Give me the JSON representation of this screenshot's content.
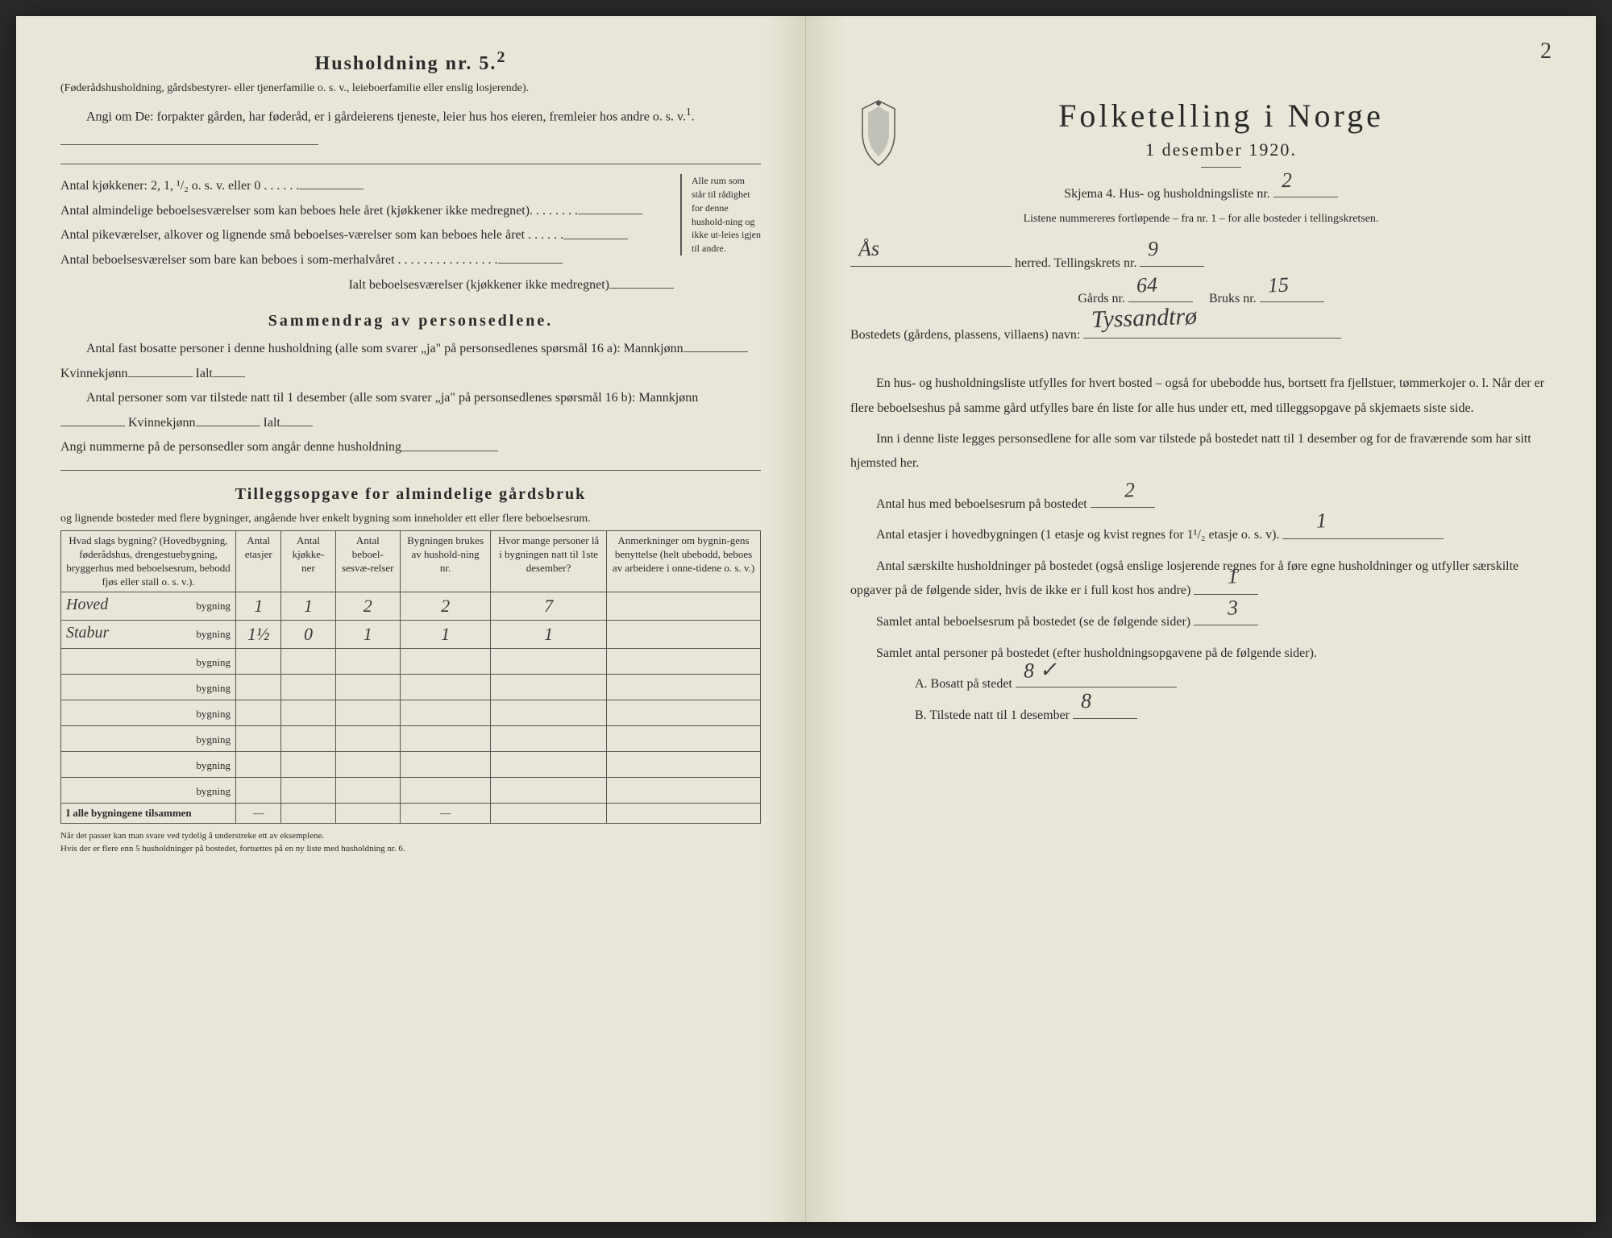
{
  "left": {
    "title": "Husholdning nr. 5.",
    "title_sup": "2",
    "intro_paren": "(Føderådshusholdning, gårdsbestyrer- eller tjenerfamilie o. s. v., leieboerfamilie eller enslig losjerende).",
    "angi_line": "Angi om De: forpakter gården, har føderåd, er i gårdeierens tjeneste, leier hus hos eieren, fremleier hos andre o. s. v.",
    "rows": {
      "kjokkener": "Antal kjøkkener: 2, 1, ¹/₂ o. s. v. eller 0 . . . . . .",
      "almindelige": "Antal almindelige beboelsesværelser som kan beboes hele året (kjøkkener ikke medregnet). . . . . . . .",
      "pike": "Antal pikeværelser, alkover og lignende små beboelses-værelser som kan beboes hele året . . . . . .",
      "sommer": "Antal beboelsesværelser som bare kan beboes i som-merhalvåret . . . . . . . . . . . . . . . .",
      "ialt": "Ialt beboelsesværelser (kjøkkener ikke medregnet)"
    },
    "brace_note": "Alle rum som står til rådighet for denne hushold-ning og ikke ut-leies igjen til andre.",
    "sammen_title": "Sammendrag av personsedlene.",
    "sammen_1": "Antal fast bosatte personer i denne husholdning (alle som svarer „ja\" på personsedlenes spørsmål 16 a): Mannkjønn",
    "kvinnekjonn": "Kvinnekjønn",
    "ialt_label": "Ialt",
    "sammen_2": "Antal personer som var tilstede natt til 1 desember (alle som svarer „ja\" på personsedlenes spørsmål 16 b): Mannkjønn",
    "angi_nummerne": "Angi nummerne på de personsedler som angår denne husholdning",
    "tillegg_title": "Tilleggsopgave for almindelige gårdsbruk",
    "tillegg_sub": "og lignende bosteder med flere bygninger, angående hver enkelt bygning som inneholder ett eller flere beboelsesrum.",
    "table": {
      "headers": {
        "h1": "Hvad slags bygning?\n(Hovedbygning, føderådshus, drengestuebygning, bryggerhus med beboelsesrum, bebodd fjøs eller stall o. s. v.).",
        "h2": "Antal etasjer",
        "h3": "Antal kjøkke-ner",
        "h4": "Antal beboel-sesvæ-relser",
        "h5": "Bygningen brukes av hushold-ning nr.",
        "h6": "Hvor mange personer lå i bygningen natt til 1ste desember?",
        "h7": "Anmerkninger om bygnin-gens benyttelse (helt ubebodd, beboes av arbeidere i onne-tidene o. s. v.)"
      },
      "row_suffix": "bygning",
      "rows": [
        {
          "prefix": "Hoved",
          "etasjer": "1",
          "kjokkener": "1",
          "beboelse": "2",
          "hushold": "2",
          "personer": "7",
          "anm": ""
        },
        {
          "prefix": "Stabur",
          "etasjer": "1½",
          "kjokkener": "0",
          "beboelse": "1",
          "hushold": "1",
          "personer": "1",
          "anm": ""
        },
        {
          "prefix": "",
          "etasjer": "",
          "kjokkener": "",
          "beboelse": "",
          "hushold": "",
          "personer": "",
          "anm": ""
        },
        {
          "prefix": "",
          "etasjer": "",
          "kjokkener": "",
          "beboelse": "",
          "hushold": "",
          "personer": "",
          "anm": ""
        },
        {
          "prefix": "",
          "etasjer": "",
          "kjokkener": "",
          "beboelse": "",
          "hushold": "",
          "personer": "",
          "anm": ""
        },
        {
          "prefix": "",
          "etasjer": "",
          "kjokkener": "",
          "beboelse": "",
          "hushold": "",
          "personer": "",
          "anm": ""
        },
        {
          "prefix": "",
          "etasjer": "",
          "kjokkener": "",
          "beboelse": "",
          "hushold": "",
          "personer": "",
          "anm": ""
        },
        {
          "prefix": "",
          "etasjer": "",
          "kjokkener": "",
          "beboelse": "",
          "hushold": "",
          "personer": "",
          "anm": ""
        }
      ],
      "total_label": "I alle bygningene tilsammen",
      "dash": "—"
    },
    "footnote": "Når det passer kan man svare ved tydelig å understreke ett av eksemplene.\nHvis der er flere enn 5 husholdninger på bostedet, fortsettes på en ny liste med husholdning nr. 6."
  },
  "right": {
    "page_number": "2",
    "main_title": "Folketelling i Norge",
    "subtitle": "1 desember 1920.",
    "skjema_line": "Skjema 4.  Hus- og husholdningsliste nr.",
    "skjema_value": "2",
    "listene_line": "Listene nummereres fortløpende – fra nr. 1 – for alle bosteder i tellingskretsen.",
    "herred_value": "Ås",
    "herred_label": "herred.   Tellingskrets nr.",
    "krets_value": "9",
    "gards_label": "Gårds nr.",
    "gards_value": "64",
    "bruks_label": "Bruks nr.",
    "bruks_value": "15",
    "bosted_label": "Bostedets (gårdens, plassens, villaens) navn:",
    "bosted_value": "Tyssandtrø",
    "para1": "En hus- og husholdningsliste utfylles for hvert bosted – også for ubebodde hus, bortsett fra fjellstuer, tømmerkojer o. l.  Når der er flere beboelseshus på samme gård utfylles bare én liste for alle hus under ett, med tilleggsopgave på skjemaets siste side.",
    "para2": "Inn i denne liste legges personsedlene for alle som var tilstede på bostedet natt til 1 desember og for de fraværende som har sitt hjemsted her.",
    "q1_label": "Antal hus med beboelsesrum på bostedet",
    "q1_value": "2",
    "q2_label": "Antal etasjer i hovedbygningen (1 etasje og kvist regnes for 1¹/₂ etasje o. s. v).",
    "q2_value": "1",
    "q3_label": "Antal særskilte husholdninger på bostedet (også enslige losjerende regnes for å føre egne husholdninger og utfyller særskilte opgaver på de følgende sider, hvis de ikke er i full kost hos andre)",
    "q3_value": "1",
    "q4_label": "Samlet antal beboelsesrum på bostedet (se de følgende sider)",
    "q4_value": "3",
    "q5_label": "Samlet antal personer på bostedet (efter husholdningsopgavene på de følgende sider).",
    "qA_label": "A.  Bosatt på stedet",
    "qA_value": "8 ✓",
    "qB_label": "B.  Tilstede natt til 1 desember",
    "qB_value": "8"
  },
  "colors": {
    "paper": "#e8e6d8",
    "ink": "#2a2a2a",
    "handwriting": "#3a3a3a"
  }
}
